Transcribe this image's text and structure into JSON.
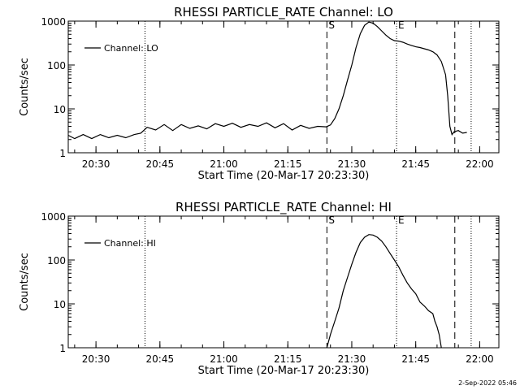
{
  "chart_data": [
    {
      "type": "line",
      "title": "RHESSI PARTICLE_RATE Channel: LO",
      "xlabel": "Start Time (20-Mar-17 20:23:30)",
      "ylabel": "Counts/sec",
      "yscale": "log",
      "ylim": [
        1,
        1000
      ],
      "xlim": [
        "20:23:30",
        "22:04:30"
      ],
      "xtick_labels": [
        "20:30",
        "20:45",
        "21:00",
        "21:15",
        "21:30",
        "21:45",
        "22:00"
      ],
      "ytick_labels": [
        "1",
        "10",
        "100",
        "1000"
      ],
      "legend": {
        "position": "top-left",
        "entries": [
          "Channel: LO"
        ]
      },
      "series": [
        {
          "name": "Channel: LO",
          "x": [
            "20:23:30",
            "20:25:00",
            "20:27:00",
            "20:29:00",
            "20:31:00",
            "20:33:00",
            "20:35:00",
            "20:37:00",
            "20:39:00",
            "20:40:30",
            "20:42:00",
            "20:44:00",
            "20:46:00",
            "20:48:00",
            "20:50:00",
            "20:52:00",
            "20:54:00",
            "20:56:00",
            "20:58:00",
            "21:00:00",
            "21:02:00",
            "21:04:00",
            "21:06:00",
            "21:08:00",
            "21:10:00",
            "21:12:00",
            "21:14:00",
            "21:16:00",
            "21:18:00",
            "21:20:00",
            "21:22:00",
            "21:24:00",
            "21:25:00",
            "21:26:00",
            "21:27:00",
            "21:28:00",
            "21:29:00",
            "21:30:00",
            "21:31:00",
            "21:32:00",
            "21:33:00",
            "21:34:00",
            "21:35:00",
            "21:36:00",
            "21:37:00",
            "21:38:00",
            "21:39:00",
            "21:40:00",
            "21:41:00",
            "21:42:00",
            "21:43:00",
            "21:44:00",
            "21:45:00",
            "21:46:00",
            "21:47:00",
            "21:48:00",
            "21:49:00",
            "21:50:00",
            "21:51:00",
            "21:52:00",
            "21:52:30",
            "21:53:00",
            "21:53:30",
            "21:54:00",
            "21:55:00",
            "21:56:00",
            "21:57:00"
          ],
          "values": [
            2.5,
            2.1,
            2.6,
            2.1,
            2.6,
            2.2,
            2.5,
            2.2,
            2.6,
            2.8,
            3.8,
            3.3,
            4.4,
            3.2,
            4.4,
            3.6,
            4.1,
            3.5,
            4.6,
            4.0,
            4.7,
            3.8,
            4.4,
            4.0,
            4.8,
            3.7,
            4.6,
            3.3,
            4.2,
            3.6,
            4.0,
            3.9,
            4.3,
            6,
            10,
            20,
            45,
            100,
            250,
            520,
            800,
            950,
            900,
            750,
            600,
            480,
            400,
            360,
            350,
            330,
            300,
            280,
            260,
            250,
            235,
            220,
            200,
            170,
            120,
            60,
            20,
            4,
            2.6,
            3.0,
            3.2,
            2.8,
            2.9
          ]
        }
      ],
      "annotations": [
        {
          "label": "S",
          "x": "21:24:10",
          "style": "dashed"
        },
        {
          "label": "E",
          "x": "21:40:30",
          "style": "dotted"
        },
        {
          "label": "",
          "x": "20:41:30",
          "style": "dotted"
        },
        {
          "label": "",
          "x": "21:54:10",
          "style": "dashed"
        },
        {
          "label": "",
          "x": "21:58:00",
          "style": "dotted"
        }
      ]
    },
    {
      "type": "line",
      "title": "RHESSI PARTICLE_RATE Channel: HI",
      "xlabel": "Start Time (20-Mar-17 20:23:30)",
      "ylabel": "Counts/sec",
      "yscale": "log",
      "ylim": [
        1,
        1000
      ],
      "xlim": [
        "20:23:30",
        "22:04:30"
      ],
      "xtick_labels": [
        "20:30",
        "20:45",
        "21:00",
        "21:15",
        "21:30",
        "21:45",
        "22:00"
      ],
      "ytick_labels": [
        "1",
        "10",
        "100",
        "1000"
      ],
      "legend": {
        "position": "top-left",
        "entries": [
          "Channel: HI"
        ]
      },
      "series": [
        {
          "name": "Channel: HI",
          "x": [
            "21:24:10",
            "21:25:00",
            "21:26:00",
            "21:27:00",
            "21:28:00",
            "21:29:00",
            "21:30:00",
            "21:31:00",
            "21:32:00",
            "21:33:00",
            "21:34:00",
            "21:35:00",
            "21:36:00",
            "21:37:00",
            "21:38:00",
            "21:39:00",
            "21:40:00",
            "21:41:00",
            "21:42:00",
            "21:43:00",
            "21:44:00",
            "21:45:00",
            "21:46:00",
            "21:47:00",
            "21:48:00",
            "21:49:00",
            "21:49:30",
            "21:50:00",
            "21:50:30",
            "21:51:00"
          ],
          "values": [
            1,
            2,
            4,
            8,
            20,
            40,
            80,
            150,
            250,
            330,
            380,
            370,
            330,
            270,
            200,
            140,
            100,
            70,
            45,
            30,
            22,
            17,
            11,
            9,
            7,
            6,
            4,
            3,
            2,
            1
          ]
        }
      ],
      "annotations": [
        {
          "label": "S",
          "x": "21:24:10",
          "style": "dashed"
        },
        {
          "label": "E",
          "x": "21:40:30",
          "style": "dotted"
        },
        {
          "label": "",
          "x": "20:41:30",
          "style": "dotted"
        },
        {
          "label": "",
          "x": "21:54:10",
          "style": "dashed"
        },
        {
          "label": "",
          "x": "21:58:00",
          "style": "dotted"
        }
      ]
    }
  ],
  "footer": {
    "date_stamp": "2-Sep-2022 05:46"
  }
}
